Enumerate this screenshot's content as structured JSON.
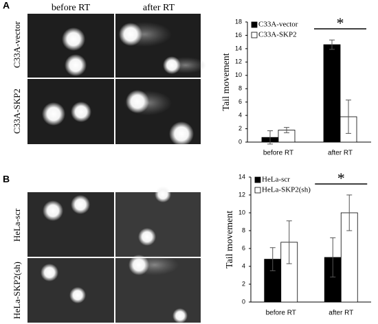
{
  "panels": [
    {
      "label": "A",
      "columns": [
        "before RT",
        "after RT"
      ],
      "rows": [
        "C33A-vector",
        "C33A-SKP2"
      ]
    },
    {
      "label": "B",
      "columns": [],
      "rows": [
        "HeLa-scr",
        "HeLa-SKP2(sh)"
      ]
    }
  ],
  "chart_data": [
    {
      "type": "bar",
      "y_label": "Tail movement",
      "categories": [
        "before RT",
        "after RT"
      ],
      "series": [
        {
          "name": "C33A-vector",
          "color": "#000000",
          "values": [
            0.7,
            14.6
          ],
          "errors": [
            1.0,
            0.7
          ]
        },
        {
          "name": "C33A-SKP2",
          "color": "#ffffff",
          "values": [
            1.8,
            3.8
          ],
          "errors": [
            0.4,
            2.5
          ]
        }
      ],
      "ylim": [
        0,
        18
      ],
      "yticks": [
        0,
        2,
        4,
        6,
        8,
        10,
        12,
        14,
        16,
        18
      ],
      "annotation": "*",
      "legend": "top-left"
    },
    {
      "type": "bar",
      "y_label": "Tail movement",
      "categories": [
        "before RT",
        "after RT"
      ],
      "series": [
        {
          "name": "HeLa-scr",
          "color": "#000000",
          "values": [
            4.8,
            5.0
          ],
          "errors": [
            1.3,
            2.2
          ]
        },
        {
          "name": "HeLa-SKP2(sh)",
          "color": "#ffffff",
          "values": [
            6.7,
            10.0
          ],
          "errors": [
            2.4,
            2.0
          ]
        }
      ],
      "ylim": [
        0,
        14
      ],
      "yticks": [
        0,
        2,
        4,
        6,
        8,
        10,
        12,
        14
      ],
      "annotation": "*",
      "legend": "top-left"
    }
  ]
}
